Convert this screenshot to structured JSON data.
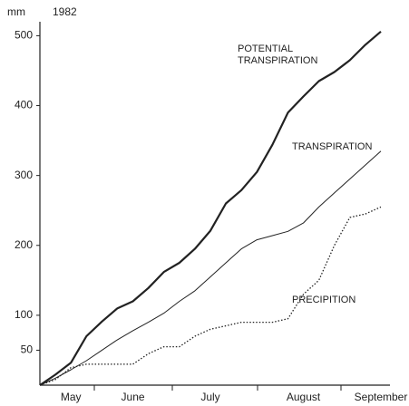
{
  "chart_data": {
    "type": "line",
    "y_label": "mm",
    "annotation": "1982",
    "categories": [
      null,
      null,
      "May",
      null,
      null,
      null,
      "June",
      null,
      null,
      null,
      null,
      "July",
      null,
      null,
      null,
      null,
      null,
      "August",
      null,
      null,
      null,
      null,
      "September"
    ],
    "series": [
      {
        "name": "POTENTIAL TRANSPIRATION",
        "color": "#222",
        "style": "thick",
        "values": [
          0,
          15,
          32,
          70,
          91,
          110,
          120,
          139,
          162,
          175,
          195,
          221,
          260,
          279,
          305,
          344,
          390,
          413,
          435,
          448,
          465,
          487,
          506
        ]
      },
      {
        "name": "TRANSPIRATION",
        "color": "#222",
        "style": "thin",
        "values": [
          0,
          10,
          22,
          35,
          50,
          65,
          78,
          90,
          103,
          120,
          135,
          155,
          175,
          195,
          208,
          214,
          220,
          232,
          255,
          275,
          295,
          315,
          335
        ]
      },
      {
        "name": "PRECIPITION",
        "color": "#222",
        "style": "dotted",
        "values": [
          0,
          8,
          25,
          30,
          30,
          30,
          30,
          45,
          55,
          55,
          70,
          80,
          85,
          90,
          90,
          90,
          95,
          130,
          150,
          200,
          240,
          245,
          255
        ]
      }
    ],
    "ylim": [
      0,
      520
    ],
    "yticks": [
      50,
      100,
      200,
      300,
      400,
      500
    ]
  }
}
